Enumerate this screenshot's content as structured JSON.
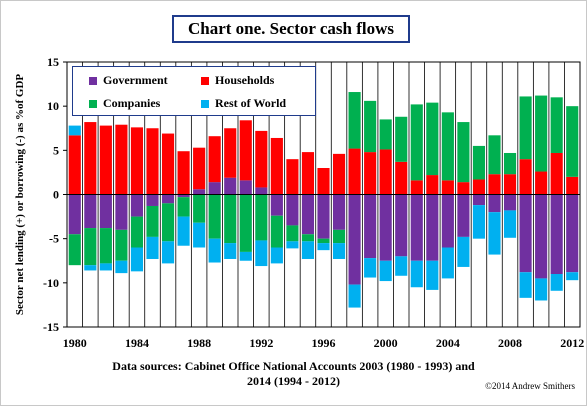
{
  "chart_data": {
    "type": "bar",
    "stacked": true,
    "title": "Chart one. Sector cash flows",
    "ylabel": "Sector net lending (+) or borrowing (-) as %of GDP",
    "ylim": [
      -15,
      15
    ],
    "yticks": [
      15,
      10,
      5,
      0,
      -5,
      -10,
      -15
    ],
    "categories": [
      "1980",
      "1981",
      "1982",
      "1983",
      "1984",
      "1985",
      "1986",
      "1987",
      "1988",
      "1989",
      "1990",
      "1991",
      "1992",
      "1993",
      "1994",
      "1995",
      "1996",
      "1997",
      "1998",
      "1999",
      "2000",
      "2001",
      "2002",
      "2003",
      "2004",
      "2005",
      "2006",
      "2007",
      "2008",
      "2009",
      "2010",
      "2011",
      "2012"
    ],
    "xtick_labels": [
      "1980",
      "1984",
      "1988",
      "1992",
      "1996",
      "2000",
      "2004",
      "2008",
      "2012"
    ],
    "grid": "vertical",
    "legend_position": "top-left",
    "series": [
      {
        "name": "Government",
        "color": "#7030a0",
        "values": [
          -4.5,
          -3.8,
          -3.8,
          -4.0,
          -2.5,
          -1.3,
          -1.0,
          -0.3,
          0.6,
          1.4,
          1.9,
          1.6,
          0.8,
          -2.4,
          -3.5,
          -4.5,
          -5.0,
          -4.0,
          -10.2,
          -7.2,
          -7.5,
          -7.0,
          -7.5,
          -7.5,
          -6.0,
          -4.8,
          -1.2,
          -2.0,
          -1.8,
          -8.8,
          -9.5,
          -9.0,
          -8.8
        ]
      },
      {
        "name": "Households",
        "color": "#ff0000",
        "values": [
          6.7,
          8.2,
          7.8,
          7.9,
          7.6,
          7.5,
          6.9,
          4.9,
          4.7,
          5.2,
          5.6,
          6.8,
          6.4,
          6.4,
          4.0,
          4.8,
          3.0,
          4.6,
          5.2,
          4.8,
          5.1,
          3.7,
          1.6,
          2.2,
          1.6,
          1.4,
          1.7,
          2.3,
          2.3,
          4.0,
          2.6,
          4.7,
          2.0
        ]
      },
      {
        "name": "Companies",
        "color": "#00b050",
        "values": [
          -3.5,
          -4.2,
          -4.0,
          -3.5,
          -3.5,
          -3.5,
          -4.3,
          -2.2,
          -3.2,
          -5.0,
          -5.5,
          -6.5,
          -5.2,
          -3.6,
          -1.8,
          -0.8,
          -0.5,
          -1.5,
          6.4,
          5.8,
          3.4,
          5.1,
          8.6,
          8.2,
          7.7,
          6.8,
          3.8,
          4.4,
          2.4,
          7.1,
          8.6,
          6.3,
          8.0
        ]
      },
      {
        "name": "Rest of World",
        "color": "#00b0f0",
        "values": [
          1.1,
          -0.6,
          -0.8,
          -1.4,
          -2.7,
          -2.5,
          -2.5,
          -3.3,
          -2.8,
          -2.7,
          -1.8,
          -1.0,
          -2.9,
          -1.8,
          -0.8,
          -2.0,
          -0.8,
          -1.8,
          -2.6,
          -2.2,
          -2.3,
          -2.2,
          -3.0,
          -3.3,
          -3.5,
          -3.4,
          -3.8,
          -4.8,
          -3.1,
          -2.9,
          -2.5,
          -1.9,
          -0.9
        ]
      }
    ]
  },
  "legend": {
    "items": [
      {
        "label": "Government",
        "color": "#7030a0"
      },
      {
        "label": "Households",
        "color": "#ff0000"
      },
      {
        "label": "Companies",
        "color": "#00b050"
      },
      {
        "label": "Rest of World",
        "color": "#00b0f0"
      }
    ]
  },
  "source": {
    "line1": "Data sources: Cabinet Office National Accounts 2003 (1980 - 1993) and",
    "line2": "2014 (1994 - 2012)"
  },
  "copyright": "©2014 Andrew Smithers"
}
